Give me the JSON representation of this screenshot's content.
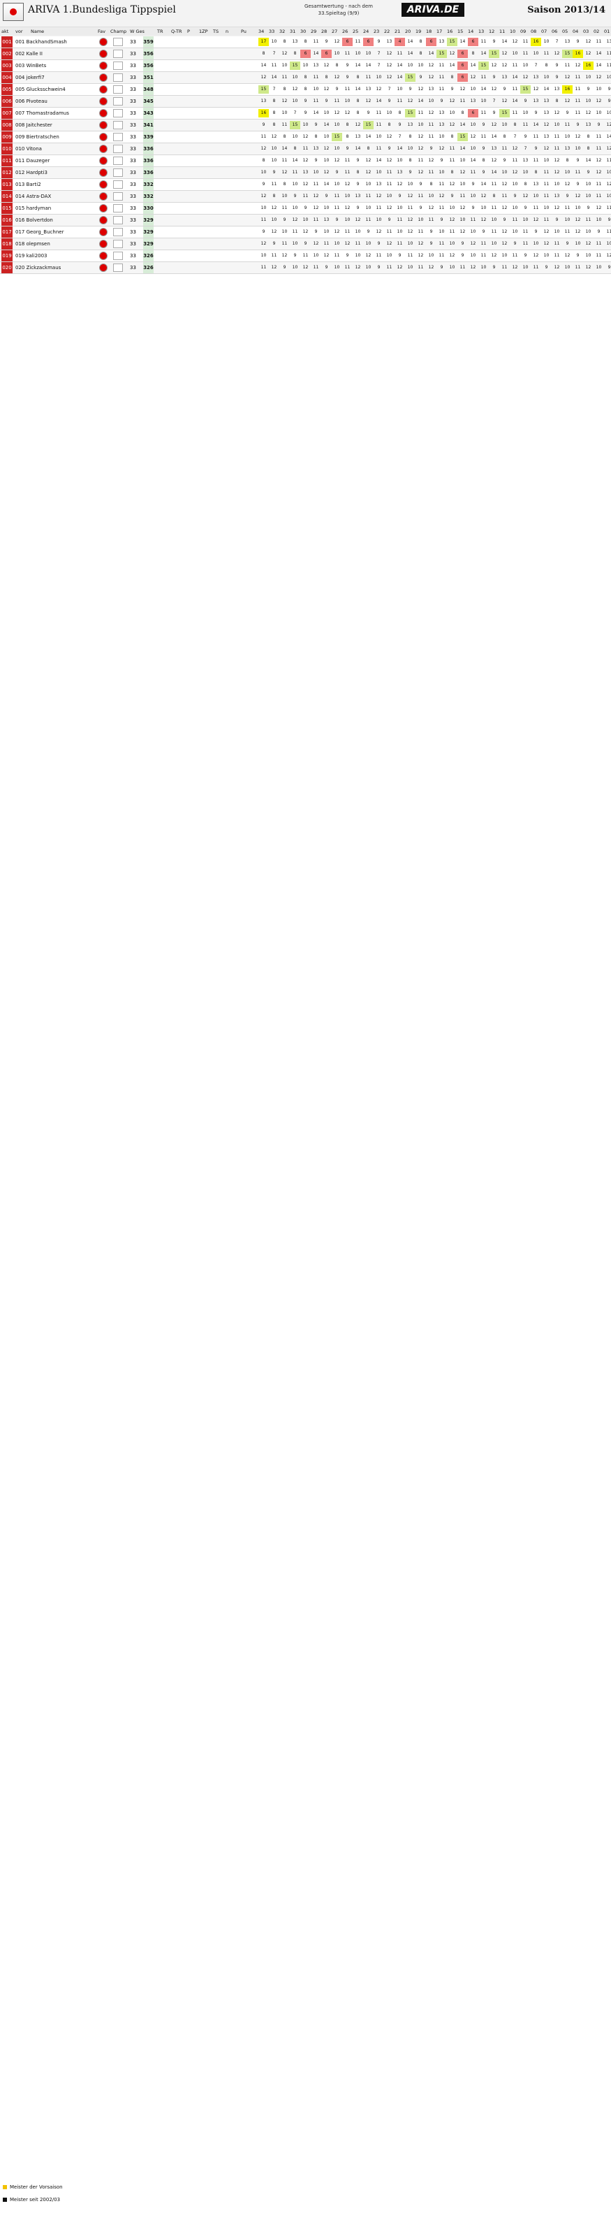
{
  "header": {
    "title": "ARIVA 1.Bundesliga Tippspiel",
    "center_lines": [
      "Gesamtwertung - nach dem",
      "33.Spieltag (9/9)"
    ],
    "brand": "ARIVA.DE",
    "season": "Saison 2013/14"
  },
  "columns": {
    "akt": "akt",
    "vor": "vor",
    "name": "Name",
    "fav": "Fav",
    "champ": "Champ",
    "wges": "W Ges",
    "tr": "TR",
    "qtr": "Q-TR",
    "p": "P",
    "zp": "1ZP",
    "ts": "TS",
    "n": "n",
    "pu": "Pu",
    "matchdays": [
      "34",
      "33",
      "32",
      "31",
      "30",
      "29",
      "28",
      "27",
      "26",
      "25",
      "24",
      "23",
      "22",
      "21",
      "20",
      "19",
      "18",
      "17",
      "16",
      "15",
      "14",
      "13",
      "12",
      "11",
      "10",
      "09",
      "08",
      "07",
      "06",
      "05",
      "04",
      "03",
      "02",
      "01"
    ]
  },
  "rows": [
    {
      "pos": "001",
      "name": "001 BackhandSmash",
      "pts": "359",
      "wg": "33",
      "grid": [
        "17",
        "10",
        "8",
        "13",
        "8",
        "11",
        "9",
        "12",
        "6",
        "11",
        "6",
        "9",
        "13",
        "4",
        "14",
        "8",
        "6",
        "13",
        "15",
        "14",
        "6",
        "11",
        "9",
        "14",
        "12",
        "11",
        "16",
        "10",
        "7",
        "13",
        "9",
        "12",
        "11",
        "13"
      ]
    },
    {
      "pos": "002",
      "name": "002 Kalle II",
      "pts": "356",
      "wg": "33",
      "grid": [
        "8",
        "7",
        "12",
        "8",
        "6",
        "14",
        "6",
        "10",
        "11",
        "10",
        "10",
        "7",
        "12",
        "11",
        "14",
        "8",
        "14",
        "15",
        "12",
        "6",
        "8",
        "14",
        "15",
        "12",
        "10",
        "11",
        "10",
        "11",
        "12",
        "15",
        "16",
        "12",
        "14",
        "11"
      ]
    },
    {
      "pos": "003",
      "name": "003 WinBets",
      "pts": "356",
      "wg": "33",
      "grid": [
        "14",
        "11",
        "10",
        "15",
        "10",
        "13",
        "12",
        "8",
        "9",
        "14",
        "14",
        "7",
        "12",
        "14",
        "10",
        "10",
        "12",
        "11",
        "14",
        "6",
        "14",
        "15",
        "12",
        "12",
        "11",
        "10",
        "7",
        "8",
        "9",
        "11",
        "12",
        "16",
        "14",
        "11"
      ]
    },
    {
      "pos": "004",
      "name": "004 jokerfi7",
      "pts": "351",
      "wg": "33",
      "grid": [
        "12",
        "14",
        "11",
        "10",
        "8",
        "11",
        "8",
        "12",
        "9",
        "8",
        "11",
        "10",
        "12",
        "14",
        "15",
        "9",
        "12",
        "11",
        "8",
        "6",
        "12",
        "11",
        "9",
        "13",
        "14",
        "12",
        "13",
        "10",
        "9",
        "12",
        "11",
        "10",
        "12",
        "10"
      ]
    },
    {
      "pos": "005",
      "name": "005 Glucksschwein4",
      "pts": "348",
      "wg": "33",
      "grid": [
        "15",
        "7",
        "8",
        "12",
        "8",
        "10",
        "12",
        "9",
        "11",
        "14",
        "13",
        "12",
        "7",
        "10",
        "9",
        "12",
        "13",
        "11",
        "9",
        "12",
        "10",
        "14",
        "12",
        "9",
        "11",
        "15",
        "12",
        "14",
        "13",
        "16",
        "11",
        "9",
        "10",
        "9"
      ]
    },
    {
      "pos": "006",
      "name": "006 Pivoteau",
      "pts": "345",
      "wg": "33",
      "grid": [
        "13",
        "8",
        "12",
        "10",
        "9",
        "11",
        "9",
        "11",
        "10",
        "8",
        "12",
        "14",
        "9",
        "11",
        "12",
        "14",
        "10",
        "9",
        "12",
        "11",
        "13",
        "10",
        "7",
        "12",
        "14",
        "9",
        "13",
        "13",
        "8",
        "12",
        "11",
        "10",
        "12",
        "9"
      ]
    },
    {
      "pos": "007",
      "name": "007 Thomastradamus",
      "pts": "343",
      "wg": "33",
      "grid": [
        "16",
        "8",
        "10",
        "7",
        "9",
        "14",
        "10",
        "12",
        "12",
        "8",
        "9",
        "11",
        "10",
        "8",
        "15",
        "11",
        "12",
        "13",
        "10",
        "8",
        "6",
        "11",
        "9",
        "15",
        "11",
        "10",
        "9",
        "13",
        "12",
        "9",
        "11",
        "12",
        "10",
        "10"
      ]
    },
    {
      "pos": "008",
      "name": "008 Jaitchester",
      "pts": "341",
      "wg": "33",
      "grid": [
        "9",
        "8",
        "11",
        "15",
        "10",
        "9",
        "14",
        "10",
        "8",
        "12",
        "15",
        "11",
        "8",
        "9",
        "13",
        "10",
        "11",
        "13",
        "12",
        "14",
        "10",
        "9",
        "12",
        "10",
        "8",
        "11",
        "14",
        "12",
        "10",
        "11",
        "9",
        "13",
        "9",
        "12"
      ]
    },
    {
      "pos": "009",
      "name": "009 Biertratschen",
      "pts": "339",
      "wg": "33",
      "grid": [
        "11",
        "12",
        "8",
        "10",
        "12",
        "8",
        "10",
        "15",
        "8",
        "13",
        "14",
        "10",
        "12",
        "7",
        "8",
        "12",
        "11",
        "10",
        "8",
        "15",
        "12",
        "11",
        "14",
        "8",
        "7",
        "9",
        "11",
        "13",
        "11",
        "10",
        "12",
        "8",
        "11",
        "14"
      ]
    },
    {
      "pos": "010",
      "name": "010 Vitona",
      "pts": "336",
      "wg": "33",
      "grid": [
        "12",
        "10",
        "14",
        "8",
        "11",
        "13",
        "12",
        "10",
        "9",
        "14",
        "8",
        "11",
        "9",
        "14",
        "10",
        "12",
        "9",
        "12",
        "11",
        "14",
        "10",
        "9",
        "13",
        "11",
        "12",
        "7",
        "9",
        "12",
        "11",
        "13",
        "10",
        "8",
        "11",
        "12"
      ]
    },
    {
      "pos": "011",
      "name": "011 Dauzeger",
      "pts": "336",
      "wg": "33",
      "grid": [
        "8",
        "10",
        "11",
        "14",
        "12",
        "9",
        "10",
        "12",
        "11",
        "9",
        "12",
        "14",
        "12",
        "10",
        "8",
        "11",
        "12",
        "9",
        "11",
        "10",
        "14",
        "8",
        "12",
        "9",
        "11",
        "13",
        "11",
        "10",
        "12",
        "8",
        "9",
        "14",
        "12",
        "11"
      ]
    },
    {
      "pos": "012",
      "name": "012 Hardpti3",
      "pts": "336",
      "wg": "33",
      "grid": [
        "10",
        "9",
        "12",
        "11",
        "13",
        "10",
        "12",
        "9",
        "11",
        "8",
        "12",
        "10",
        "11",
        "13",
        "9",
        "12",
        "11",
        "10",
        "8",
        "12",
        "11",
        "9",
        "14",
        "10",
        "12",
        "10",
        "8",
        "11",
        "12",
        "10",
        "11",
        "9",
        "12",
        "10"
      ]
    },
    {
      "pos": "013",
      "name": "013 Barti2",
      "pts": "332",
      "wg": "33",
      "grid": [
        "9",
        "11",
        "8",
        "10",
        "12",
        "11",
        "14",
        "10",
        "12",
        "9",
        "10",
        "13",
        "11",
        "12",
        "10",
        "9",
        "8",
        "11",
        "12",
        "10",
        "9",
        "14",
        "11",
        "12",
        "10",
        "8",
        "13",
        "11",
        "10",
        "12",
        "9",
        "10",
        "11",
        "12"
      ]
    },
    {
      "pos": "014",
      "name": "014 Astra-DAX",
      "pts": "332",
      "wg": "33",
      "grid": [
        "12",
        "8",
        "10",
        "9",
        "11",
        "12",
        "9",
        "11",
        "10",
        "13",
        "11",
        "12",
        "10",
        "9",
        "12",
        "11",
        "10",
        "12",
        "9",
        "11",
        "10",
        "12",
        "8",
        "11",
        "9",
        "12",
        "10",
        "11",
        "13",
        "9",
        "12",
        "10",
        "11",
        "10"
      ]
    },
    {
      "pos": "015",
      "name": "015 hardyman",
      "pts": "330",
      "wg": "33",
      "grid": [
        "10",
        "12",
        "11",
        "10",
        "9",
        "12",
        "10",
        "11",
        "12",
        "9",
        "10",
        "11",
        "12",
        "10",
        "11",
        "9",
        "12",
        "11",
        "10",
        "12",
        "9",
        "10",
        "11",
        "12",
        "10",
        "9",
        "11",
        "10",
        "12",
        "11",
        "10",
        "9",
        "12",
        "11"
      ]
    },
    {
      "pos": "016",
      "name": "016 Bolvertdon",
      "pts": "329",
      "wg": "33",
      "grid": [
        "11",
        "10",
        "9",
        "12",
        "10",
        "11",
        "13",
        "9",
        "10",
        "12",
        "11",
        "10",
        "9",
        "11",
        "12",
        "10",
        "11",
        "9",
        "12",
        "10",
        "11",
        "12",
        "10",
        "9",
        "11",
        "10",
        "12",
        "11",
        "9",
        "10",
        "12",
        "11",
        "10",
        "9"
      ]
    },
    {
      "pos": "017",
      "name": "017 Georg_Buchner",
      "pts": "329",
      "wg": "33",
      "grid": [
        "9",
        "12",
        "10",
        "11",
        "12",
        "9",
        "10",
        "12",
        "11",
        "10",
        "9",
        "12",
        "11",
        "10",
        "12",
        "11",
        "9",
        "10",
        "11",
        "12",
        "10",
        "9",
        "11",
        "12",
        "10",
        "11",
        "9",
        "12",
        "10",
        "11",
        "12",
        "10",
        "9",
        "11"
      ]
    },
    {
      "pos": "018",
      "name": "018 olepmsen",
      "pts": "329",
      "wg": "33",
      "grid": [
        "12",
        "9",
        "11",
        "10",
        "9",
        "12",
        "11",
        "10",
        "12",
        "11",
        "10",
        "9",
        "12",
        "11",
        "10",
        "12",
        "9",
        "11",
        "10",
        "9",
        "12",
        "11",
        "10",
        "12",
        "9",
        "11",
        "10",
        "12",
        "11",
        "9",
        "10",
        "12",
        "11",
        "10"
      ]
    },
    {
      "pos": "019",
      "name": "019 kali2003",
      "pts": "326",
      "wg": "33",
      "grid": [
        "10",
        "11",
        "12",
        "9",
        "11",
        "10",
        "12",
        "11",
        "9",
        "10",
        "12",
        "11",
        "10",
        "9",
        "11",
        "12",
        "10",
        "11",
        "12",
        "9",
        "10",
        "11",
        "12",
        "10",
        "11",
        "9",
        "12",
        "10",
        "11",
        "12",
        "9",
        "10",
        "11",
        "12"
      ]
    },
    {
      "pos": "020",
      "name": "020 Zickzackmaus",
      "pts": "326",
      "wg": "33",
      "grid": [
        "11",
        "12",
        "9",
        "10",
        "12",
        "11",
        "9",
        "10",
        "11",
        "12",
        "10",
        "9",
        "11",
        "12",
        "10",
        "11",
        "12",
        "9",
        "10",
        "11",
        "12",
        "10",
        "9",
        "11",
        "12",
        "10",
        "11",
        "9",
        "12",
        "10",
        "11",
        "12",
        "10",
        "9"
      ]
    }
  ],
  "legend": {
    "line1": "Meister der Vorsaison",
    "line2": "Meister seit 2002/03"
  },
  "colors": {
    "pos_badge": "#cc2222",
    "pts_bg": "#d7ecd7",
    "highlight_green": "#cfe98a",
    "highlight_yellow": "#f2f000",
    "highlight_red": "#f08080",
    "blue_stripe": "#9fd6ff"
  }
}
